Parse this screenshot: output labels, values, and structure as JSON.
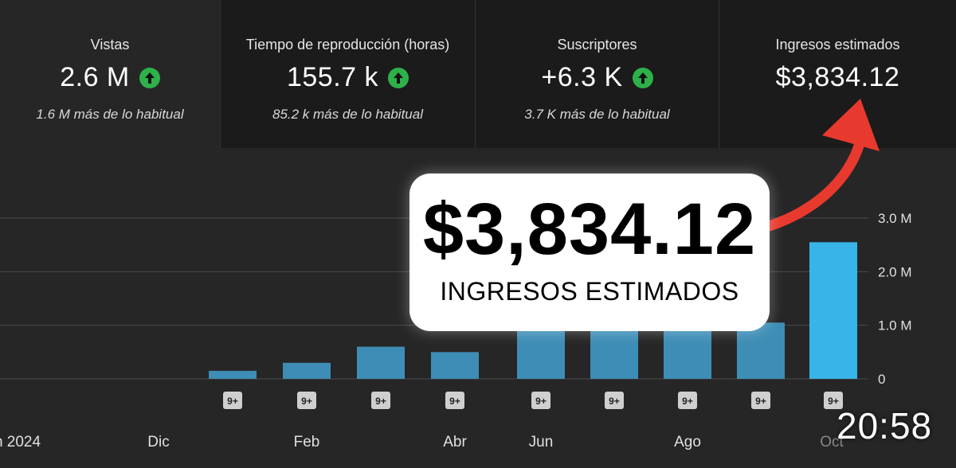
{
  "stats": [
    {
      "label": "Vistas",
      "value": "2.6 M",
      "sub": "1.6 M más de lo habitual",
      "trend_icon": "arrow-up-icon"
    },
    {
      "label": "Tiempo de reproducción (horas)",
      "value": "155.7 k",
      "sub": "85.2 k más de lo habitual",
      "trend_icon": "arrow-up-icon"
    },
    {
      "label": "Suscriptores",
      "value": "+6.3 K",
      "sub": "3.7 K más de lo habitual",
      "trend_icon": "arrow-up-icon"
    },
    {
      "label": "Ingresos estimados",
      "value": "$3,834.12"
    }
  ],
  "callout": {
    "amount": "$3,834.12",
    "caption": "INGRESOS ESTIMADOS"
  },
  "chart_data": {
    "type": "bar",
    "title": "",
    "x_labels": [
      "n 2024",
      "Dic",
      "Feb",
      "Abr",
      "Jun",
      "Ago",
      "Oct"
    ],
    "y_ticks": [
      "0",
      "1.0 M",
      "2.0 M",
      "3.0 M"
    ],
    "ylim": [
      0,
      3000000
    ],
    "values": [
      150000,
      300000,
      600000,
      500000,
      950000,
      950000,
      950000,
      1050000,
      2550000
    ],
    "badges": [
      "9+",
      "9+",
      "9+",
      "9+",
      "9+",
      "9+",
      "9+",
      "9+",
      "9+"
    ],
    "colors": {
      "bar": "#3e8db6",
      "bar_highlight": "#39b4e8",
      "grid": "#4a4a4a"
    }
  },
  "clock": "20:58",
  "colors": {
    "up": "#2db24a",
    "arrow": "#e8392e"
  }
}
